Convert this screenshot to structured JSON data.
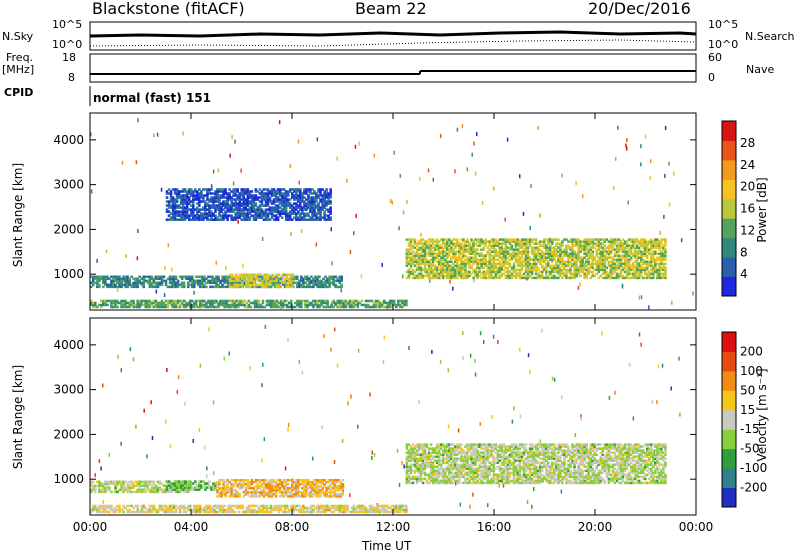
{
  "header": {
    "station": "Blackstone (fitACF)",
    "beam": "Beam 22",
    "date": "20/Dec/2016"
  },
  "strip_labels": {
    "nsky": "N.Sky",
    "nsearch": "N.Search",
    "freq": "Freq.",
    "mhz": "[MHz]",
    "nave": "Nave",
    "cpid": "CPID",
    "cpid_value": "normal (fast) 151",
    "tick_1e5": "10^5",
    "tick_1e0": "10^0",
    "freq_ticks": [
      "18",
      "8"
    ],
    "nave_ticks": [
      "60",
      "0"
    ]
  },
  "chart_data": [
    {
      "type": "heatmap",
      "name": "power_panel",
      "xlabel": "",
      "ylabel": "Slant Range [km]",
      "xlim": [
        0,
        24
      ],
      "ylim": [
        200,
        4600
      ],
      "y_ticks": [
        "4000",
        "3000",
        "2000",
        "1000"
      ],
      "colorbar_label": "Power [dB]",
      "colorbar_ticks": [
        "28",
        "24",
        "20",
        "16",
        "12",
        "8",
        "4"
      ],
      "colors": [
        "#1f28e0",
        "#2a5fb0",
        "#2f8a7c",
        "#53a45a",
        "#b7c83c",
        "#f4c221",
        "#f29a1b",
        "#e8541a",
        "#d61414"
      ],
      "bands": [
        {
          "t0": 0.0,
          "t1": 10.0,
          "r0": 700,
          "r1": 950,
          "level": 0.25
        },
        {
          "t0": 5.5,
          "t1": 8.0,
          "r0": 700,
          "r1": 1000,
          "level": 0.55
        },
        {
          "t0": 0.0,
          "t1": 12.5,
          "r0": 250,
          "r1": 420,
          "level": 0.35
        },
        {
          "t0": 3.0,
          "t1": 9.5,
          "r0": 2200,
          "r1": 2900,
          "level": 0.1
        },
        {
          "t0": 12.5,
          "t1": 22.8,
          "r0": 900,
          "r1": 1800,
          "level": 0.5
        }
      ]
    },
    {
      "type": "heatmap",
      "name": "velocity_panel",
      "xlabel": "Time UT",
      "ylabel": "Slant Range [km]",
      "xlim": [
        0,
        24
      ],
      "ylim": [
        200,
        4600
      ],
      "x_ticks": [
        "00:00",
        "04:00",
        "08:00",
        "12:00",
        "16:00",
        "20:00",
        "00:00"
      ],
      "y_ticks": [
        "4000",
        "3000",
        "2000",
        "1000"
      ],
      "colorbar_label": "Velocity [m s⁻¹]",
      "colorbar_ticks": [
        "200",
        "100",
        "50",
        "15",
        "-15",
        "-50",
        "-100",
        "-200"
      ],
      "colors": [
        "#1f2fbf",
        "#2f7f8c",
        "#2f9e3f",
        "#88cf3a",
        "#c9c9c0",
        "#f7c61c",
        "#f08c13",
        "#e84a11",
        "#dc1010"
      ],
      "bands": [
        {
          "t0": 0.0,
          "t1": 4.0,
          "r0": 700,
          "r1": 950,
          "level": 0.45
        },
        {
          "t0": 3.0,
          "t1": 5.0,
          "r0": 750,
          "r1": 950,
          "level": 0.35
        },
        {
          "t0": 5.0,
          "t1": 10.0,
          "r0": 600,
          "r1": 1000,
          "level": 0.65
        },
        {
          "t0": 0.0,
          "t1": 12.5,
          "r0": 250,
          "r1": 400,
          "level": 0.55
        },
        {
          "t0": 12.5,
          "t1": 22.8,
          "r0": 900,
          "r1": 1800,
          "level": 0.45
        }
      ]
    }
  ]
}
